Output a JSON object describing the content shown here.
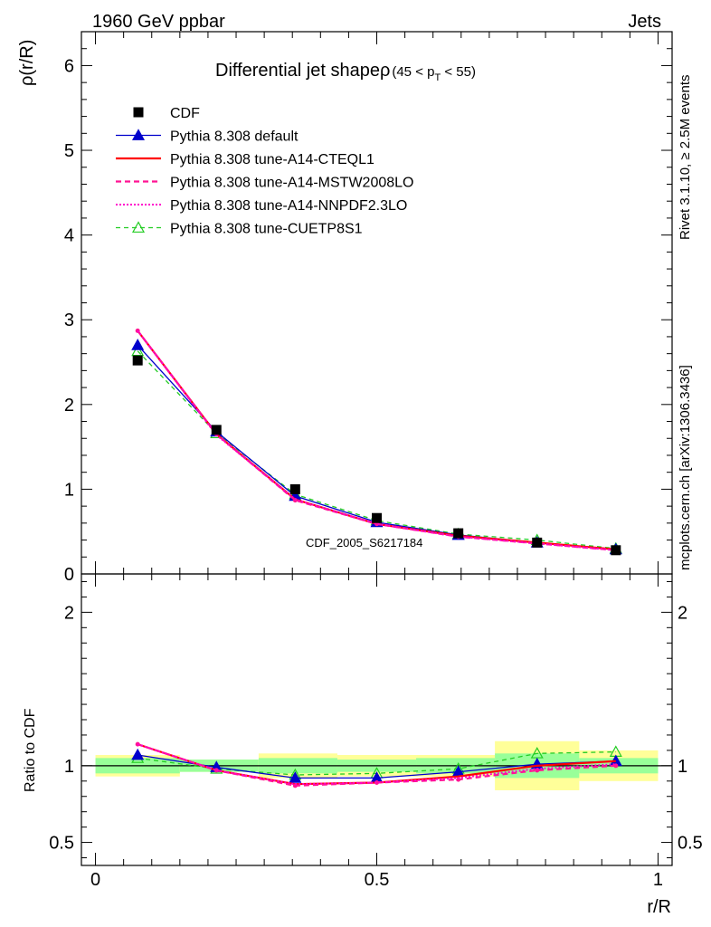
{
  "header": {
    "left": "1960 GeV ppbar",
    "right": "Jets",
    "title": "Differential jet shapeρ",
    "title_range_left": "(45 < p",
    "title_range_sub": "T",
    "title_range_right": " < 55)"
  },
  "side_labels": {
    "rivet": "Rivet 3.1.10, ≥ 2.5M events",
    "mcplots": "mcplots.cern.ch [arXiv:1306.3436]"
  },
  "watermark": "CDF_2005_S6217184",
  "colors": {
    "cdf": "#000000",
    "default": "#0000cc",
    "cteql1": "#ff0000",
    "mstw": "#ff1493",
    "nnpdf": "#ff00cc",
    "cuetp8s1": "#22cc22",
    "band_inner": "#99ff99",
    "band_outer": "#ffff99"
  },
  "chart_data": [
    {
      "type": "line",
      "panel": "main",
      "ylabel": "ρ(r/R)",
      "ylim": [
        0,
        6.4
      ],
      "yticks": [
        "0",
        "1",
        "2",
        "3",
        "4",
        "5",
        "6"
      ],
      "x": [
        0.075,
        0.215,
        0.355,
        0.5,
        0.645,
        0.785,
        0.925
      ],
      "series": [
        {
          "name": "CDF",
          "marker": "square",
          "values": [
            2.52,
            1.7,
            1.0,
            0.66,
            0.48,
            0.37,
            0.28
          ]
        },
        {
          "name": "Pythia 8.308 default",
          "marker": "triangle",
          "values": [
            2.7,
            1.68,
            0.92,
            0.61,
            0.46,
            0.37,
            0.29
          ]
        },
        {
          "name": "Pythia 8.308 tune-A14-CTEQL1",
          "values": [
            2.87,
            1.65,
            0.88,
            0.59,
            0.45,
            0.37,
            0.29
          ]
        },
        {
          "name": "Pythia 8.308 tune-A14-MSTW2008LO",
          "values": [
            2.87,
            1.65,
            0.87,
            0.59,
            0.44,
            0.36,
            0.28
          ]
        },
        {
          "name": "Pythia 8.308 tune-A14-NNPDF2.3LO",
          "values": [
            2.87,
            1.64,
            0.88,
            0.59,
            0.44,
            0.36,
            0.28
          ]
        },
        {
          "name": "Pythia 8.308 tune-CUETP8S1",
          "marker": "open-triangle",
          "values": [
            2.63,
            1.66,
            0.94,
            0.63,
            0.47,
            0.4,
            0.3
          ]
        }
      ]
    },
    {
      "type": "line",
      "panel": "ratio",
      "xlabel": "r/R",
      "ylabel": "Ratio to CDF",
      "ylim": [
        0.35,
        2.25
      ],
      "yticks": [
        "0.5",
        "1",
        "2"
      ],
      "xlim": [
        -0.025,
        1.025
      ],
      "xticks": [
        "0",
        "0.5",
        "1"
      ],
      "x": [
        0.075,
        0.215,
        0.355,
        0.5,
        0.645,
        0.785,
        0.925
      ],
      "bands": {
        "bins": [
          [
            0.0,
            0.15
          ],
          [
            0.15,
            0.29
          ],
          [
            0.29,
            0.43
          ],
          [
            0.43,
            0.57
          ],
          [
            0.57,
            0.71
          ],
          [
            0.71,
            0.86
          ],
          [
            0.86,
            1.0
          ]
        ],
        "inner": [
          [
            0.95,
            1.05
          ],
          [
            0.96,
            1.04
          ],
          [
            0.95,
            1.05
          ],
          [
            0.96,
            1.04
          ],
          [
            0.95,
            1.05
          ],
          [
            0.92,
            1.08
          ],
          [
            0.95,
            1.05
          ]
        ],
        "outer": [
          [
            0.93,
            1.07
          ],
          [
            0.96,
            1.04
          ],
          [
            0.92,
            1.08
          ],
          [
            0.93,
            1.07
          ],
          [
            0.93,
            1.07
          ],
          [
            0.84,
            1.16
          ],
          [
            0.9,
            1.1
          ]
        ]
      },
      "series": [
        {
          "name": "Pythia 8.308 default",
          "values": [
            1.07,
            0.99,
            0.92,
            0.92,
            0.96,
            1.01,
            1.03
          ]
        },
        {
          "name": "Pythia 8.308 tune-A14-CTEQL1",
          "values": [
            1.14,
            0.97,
            0.88,
            0.89,
            0.93,
            1.0,
            1.03
          ]
        },
        {
          "name": "Pythia 8.308 tune-A14-MSTW2008LO",
          "values": [
            1.14,
            0.97,
            0.87,
            0.89,
            0.91,
            0.97,
            1.0
          ]
        },
        {
          "name": "Pythia 8.308 tune-A14-NNPDF2.3LO",
          "values": [
            1.14,
            0.97,
            0.88,
            0.89,
            0.92,
            0.98,
            1.01
          ]
        },
        {
          "name": "Pythia 8.308 tune-CUETP8S1",
          "values": [
            1.05,
            0.98,
            0.94,
            0.95,
            0.98,
            1.08,
            1.09
          ]
        }
      ]
    }
  ]
}
